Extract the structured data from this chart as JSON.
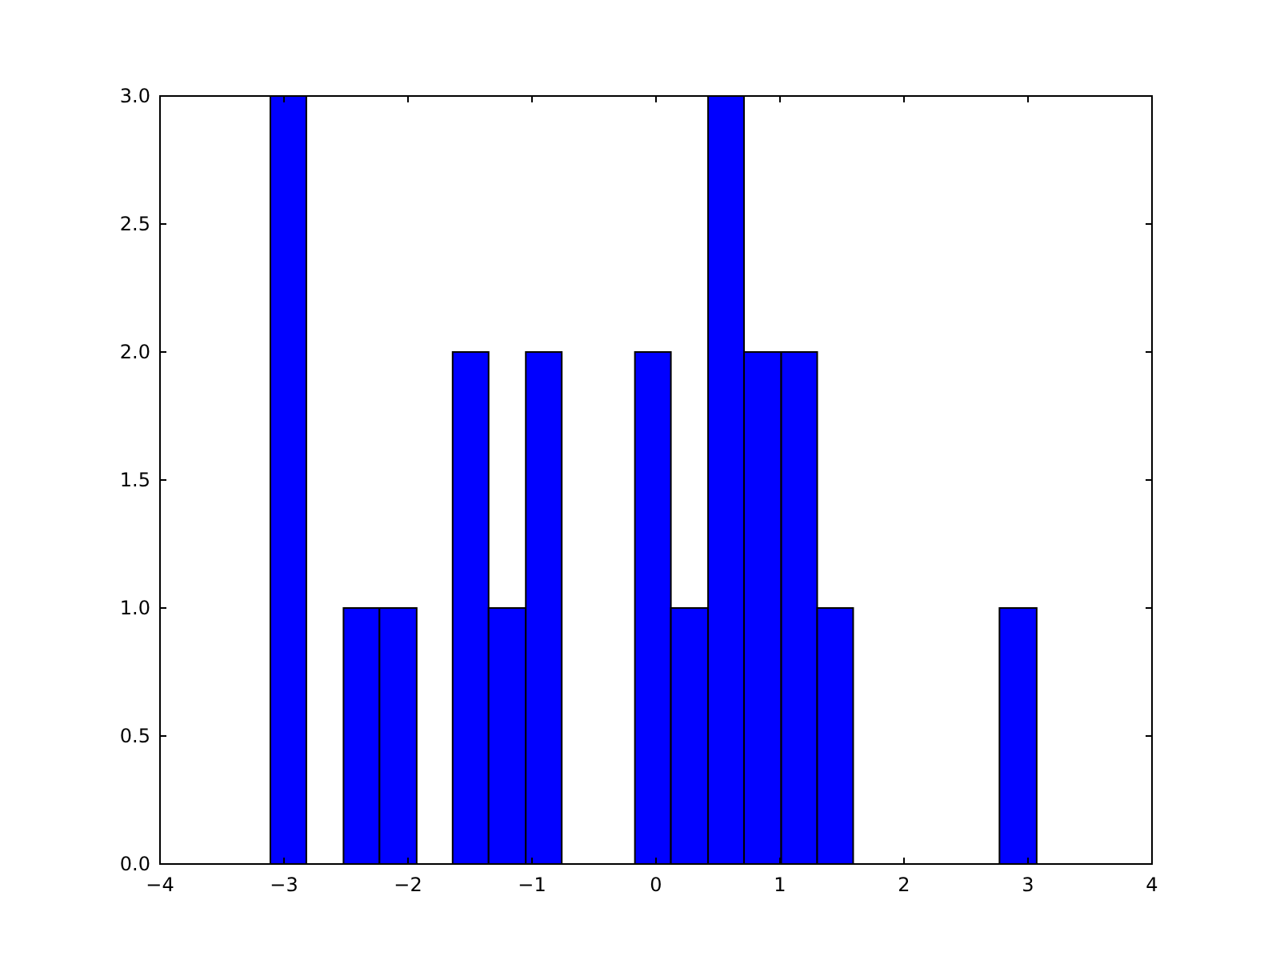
{
  "chart_data": {
    "type": "histogram",
    "color": "#0000ff",
    "bins": [
      -3.11,
      -2.82,
      -2.52,
      -2.23,
      -1.93,
      -1.64,
      -1.35,
      -1.05,
      -0.76,
      -0.17,
      0.12,
      0.42,
      0.71,
      1.01,
      1.3,
      1.59,
      2.77,
      3.07
    ],
    "values": [
      3,
      0,
      1,
      1,
      0,
      2,
      1,
      2,
      0,
      2,
      1,
      3,
      2,
      2,
      1,
      0,
      1
    ],
    "xlim": [
      -4,
      4
    ],
    "xticks": [
      {
        "value": -4,
        "label": "−4"
      },
      {
        "value": -3,
        "label": "−3"
      },
      {
        "value": -2,
        "label": "−2"
      },
      {
        "value": -1,
        "label": "−1"
      },
      0,
      1,
      2,
      3,
      4
    ],
    "ylim": [
      0,
      3
    ],
    "yticks": [
      {
        "value": 0,
        "label": "0.0"
      },
      {
        "value": 0.5,
        "label": "0.5"
      },
      {
        "value": 1,
        "label": "1.0"
      },
      {
        "value": 1.5,
        "label": "1.5"
      },
      {
        "value": 2,
        "label": "2.0"
      },
      {
        "value": 2.5,
        "label": "2.5"
      },
      {
        "value": 3,
        "label": "3.0"
      }
    ]
  }
}
